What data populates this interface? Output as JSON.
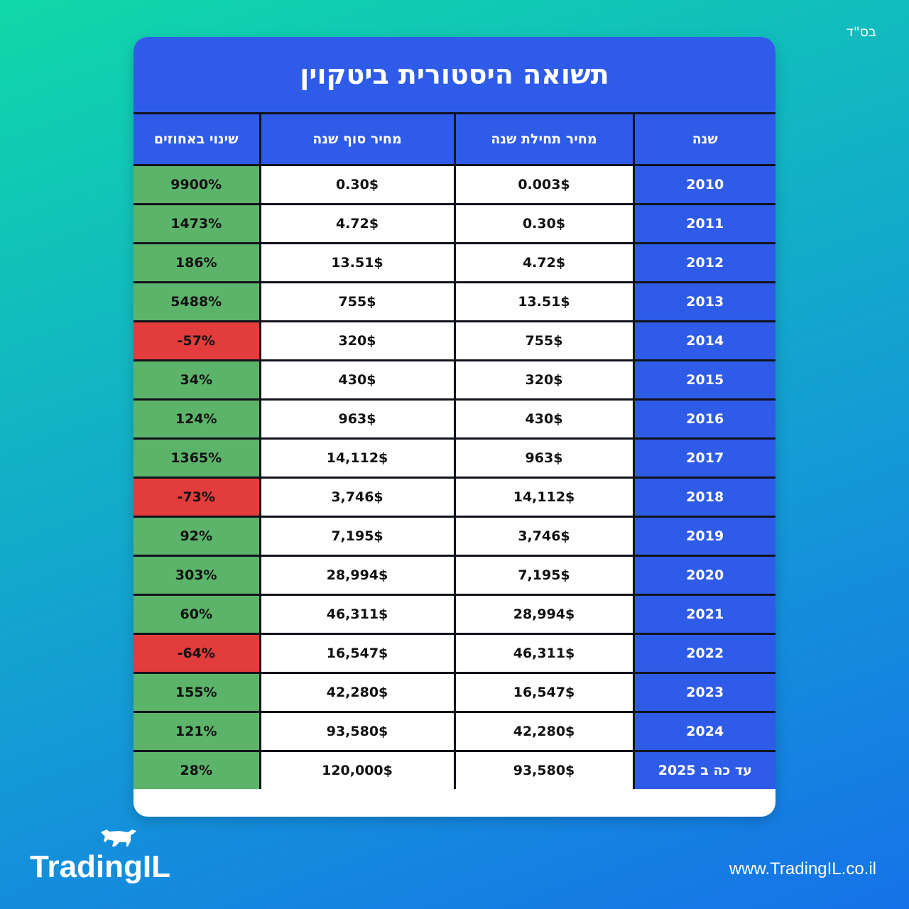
{
  "corner_text": "בס\"ד",
  "title": "תשואה היסטורית ביטקוין",
  "columns": {
    "year": "שנה",
    "start_price": "מחיר תחילת שנה",
    "end_price": "מחיר סוף שנה",
    "change": "שינוי באחוזים"
  },
  "rows": [
    {
      "year": "2010",
      "start": "0.003$",
      "end": "0.30$",
      "change": "9900%",
      "negative": false
    },
    {
      "year": "2011",
      "start": "0.30$",
      "end": "4.72$",
      "change": "1473%",
      "negative": false
    },
    {
      "year": "2012",
      "start": "4.72$",
      "end": "13.51$",
      "change": "186%",
      "negative": false
    },
    {
      "year": "2013",
      "start": "13.51$",
      "end": "755$",
      "change": "5488%",
      "negative": false
    },
    {
      "year": "2014",
      "start": "755$",
      "end": "320$",
      "change": "-57%",
      "negative": true
    },
    {
      "year": "2015",
      "start": "320$",
      "end": "430$",
      "change": "34%",
      "negative": false
    },
    {
      "year": "2016",
      "start": "430$",
      "end": "963$",
      "change": "124%",
      "negative": false
    },
    {
      "year": "2017",
      "start": "963$",
      "end": "14,112$",
      "change": "1365%",
      "negative": false
    },
    {
      "year": "2018",
      "start": "14,112$",
      "end": "3,746$",
      "change": "-73%",
      "negative": true
    },
    {
      "year": "2019",
      "start": "3,746$",
      "end": "7,195$",
      "change": "92%",
      "negative": false
    },
    {
      "year": "2020",
      "start": "7,195$",
      "end": "28,994$",
      "change": "303%",
      "negative": false
    },
    {
      "year": "2021",
      "start": "28,994$",
      "end": "46,311$",
      "change": "60%",
      "negative": false
    },
    {
      "year": "2022",
      "start": "46,311$",
      "end": "16,547$",
      "change": "-64%",
      "negative": true
    },
    {
      "year": "2023",
      "start": "16,547$",
      "end": "42,280$",
      "change": "155%",
      "negative": false
    },
    {
      "year": "2024",
      "start": "42,280$",
      "end": "93,580$",
      "change": "121%",
      "negative": false
    },
    {
      "year": "עד כה ב 2025",
      "start": "93,580$",
      "end": "120,000$",
      "change": "28%",
      "negative": false
    }
  ],
  "colors": {
    "header_blue": "#2f5be9",
    "positive_green": "#5cb46a",
    "negative_red": "#e23c3c"
  },
  "logo_text": "TradingIL",
  "logo_icon": "bull-icon",
  "website": "www.TradingIL.co.il"
}
